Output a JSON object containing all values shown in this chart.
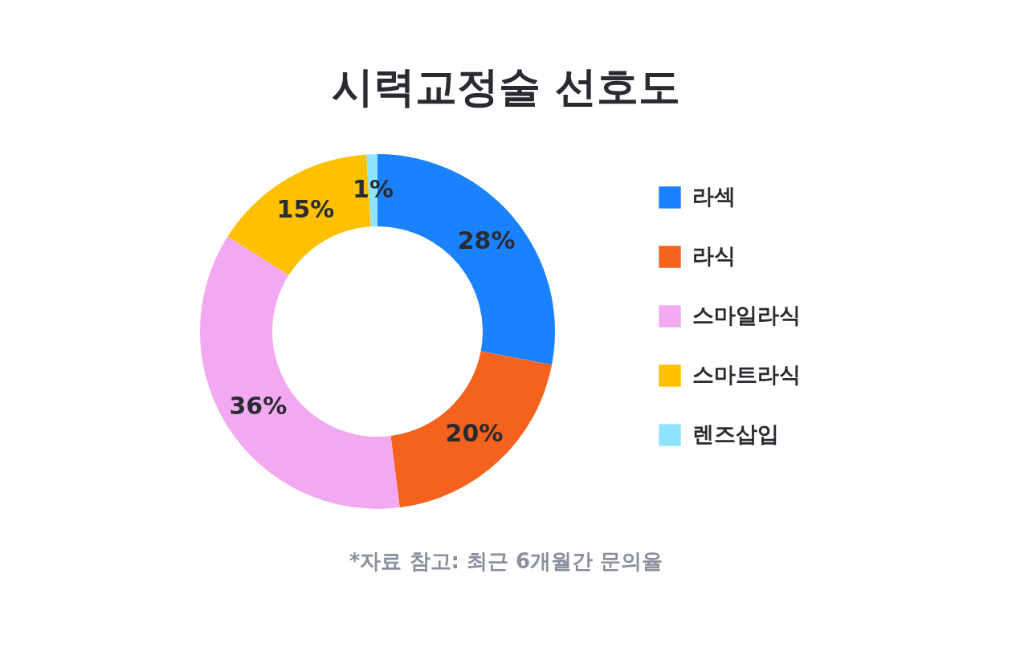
{
  "chart_data": {
    "type": "donut",
    "title": "시력교정술 선호도",
    "categories": [
      "라섹",
      "라식",
      "스마일라식",
      "스마트라식",
      "렌즈삽입"
    ],
    "values": [
      28,
      20,
      36,
      15,
      1
    ],
    "colors": [
      "#1a82ff",
      "#f4621d",
      "#f2a9f2",
      "#ffc000",
      "#8fe3ff"
    ],
    "value_labels": [
      "28%",
      "20%",
      "36%",
      "15%",
      "1%"
    ],
    "legend": "right",
    "annotations": [
      "*자료 참고: 최근 6개월간 문의율"
    ]
  }
}
